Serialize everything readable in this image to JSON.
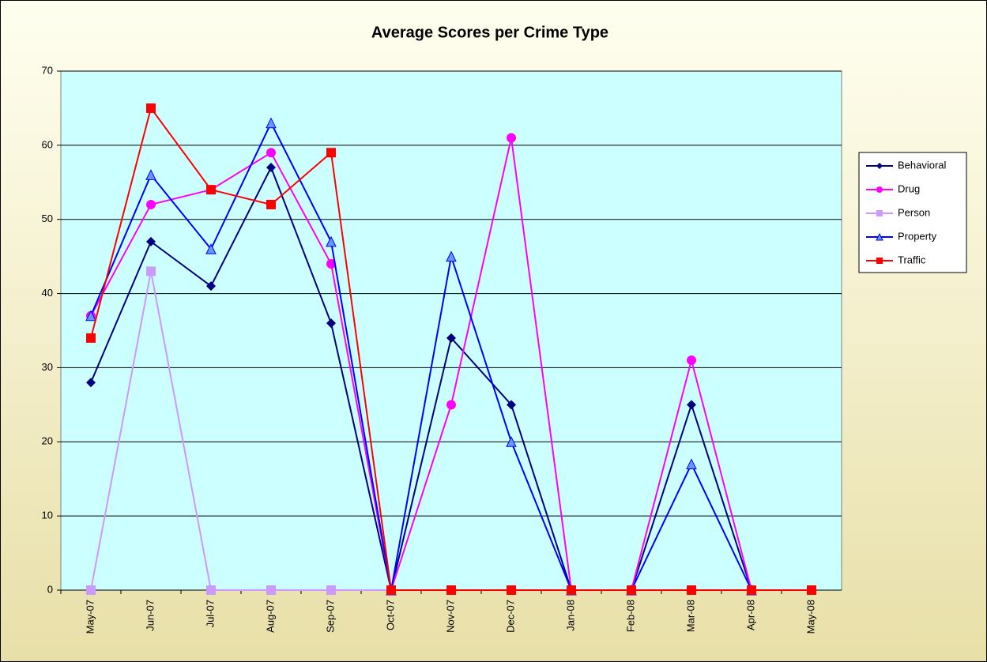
{
  "chart_data": {
    "type": "line",
    "title": "Average Scores per Crime Type",
    "categories": [
      "May-07",
      "Jun-07",
      "Jul-07",
      "Aug-07",
      "Sep-07",
      "Oct-07",
      "Nov-07",
      "Dec-07",
      "Jan-08",
      "Feb-08",
      "Mar-08",
      "Apr-08",
      "May-08"
    ],
    "series": [
      {
        "name": "Behavioral",
        "color": "#000080",
        "marker": "diamond",
        "values": [
          28,
          47,
          41,
          57,
          36,
          0,
          34,
          25,
          0,
          0,
          25,
          0,
          null
        ]
      },
      {
        "name": "Drug",
        "color": "#ff00ff",
        "marker": "circle",
        "values": [
          37,
          52,
          54,
          59,
          44,
          0,
          25,
          61,
          0,
          0,
          31,
          0,
          null
        ]
      },
      {
        "name": "Person",
        "color": "#cc99ff",
        "marker": "square",
        "values": [
          0,
          43,
          0,
          0,
          0,
          0,
          null,
          null,
          null,
          null,
          null,
          null,
          null
        ]
      },
      {
        "name": "Property",
        "color": "#0000ff",
        "marker": "triangle",
        "values": [
          37,
          56,
          46,
          63,
          47,
          0,
          45,
          20,
          0,
          0,
          17,
          0,
          null
        ]
      },
      {
        "name": "Traffic",
        "color": "#ff0000",
        "marker": "square",
        "values": [
          34,
          65,
          54,
          52,
          59,
          0,
          0,
          0,
          0,
          0,
          0,
          0,
          0
        ]
      }
    ],
    "ylim": [
      0,
      70
    ],
    "yticks": [
      0,
      10,
      20,
      30,
      40,
      50,
      60,
      70
    ],
    "grid": true,
    "legend": "right"
  }
}
